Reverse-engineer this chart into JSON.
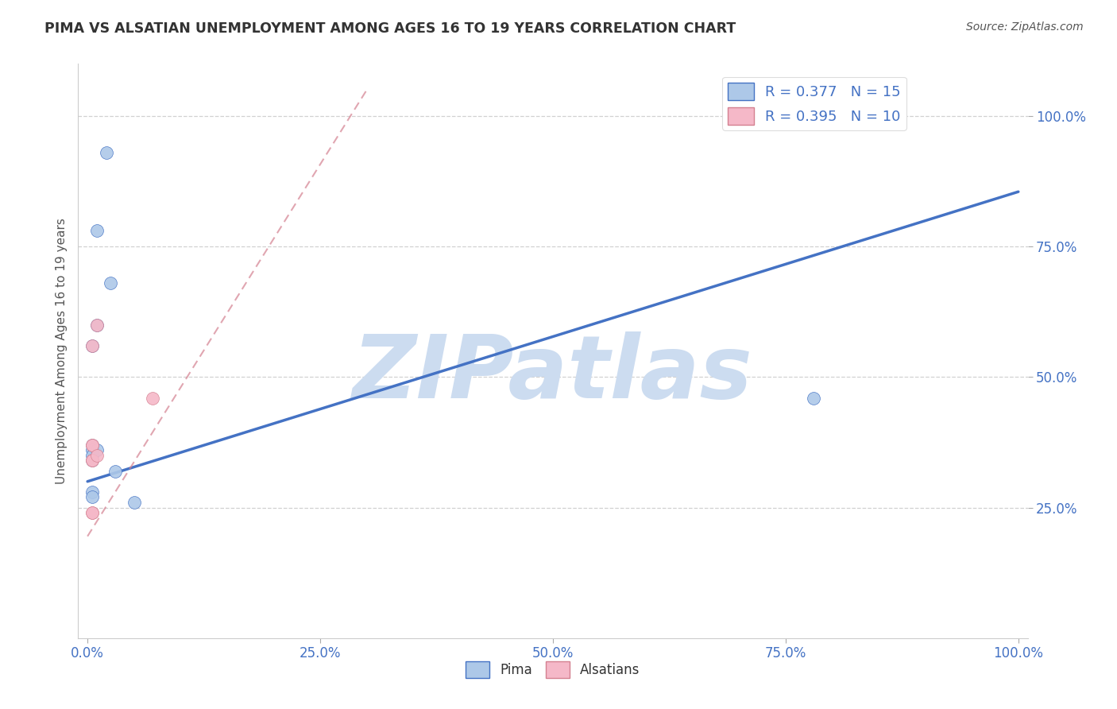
{
  "title": "PIMA VS ALSATIAN UNEMPLOYMENT AMONG AGES 16 TO 19 YEARS CORRELATION CHART",
  "source_text": "Source: ZipAtlas.com",
  "ylabel": "Unemployment Among Ages 16 to 19 years",
  "xlabel": "",
  "watermark": "ZIPatlas",
  "pima_R": 0.377,
  "pima_N": 15,
  "alsatian_R": 0.395,
  "alsatian_N": 10,
  "pima_color": "#adc8e8",
  "alsatian_color": "#f5b8c8",
  "pima_line_color": "#4472c4",
  "alsatian_line_color": "#d48090",
  "pima_scatter_x": [
    0.02,
    0.01,
    0.01,
    0.005,
    0.005,
    0.005,
    0.005,
    0.005,
    0.005,
    0.005,
    0.025,
    0.01,
    0.03,
    0.78,
    0.05
  ],
  "pima_scatter_y": [
    0.93,
    0.78,
    0.6,
    0.56,
    0.37,
    0.36,
    0.35,
    0.34,
    0.28,
    0.27,
    0.68,
    0.36,
    0.32,
    0.46,
    0.26
  ],
  "alsatian_scatter_x": [
    0.005,
    0.005,
    0.005,
    0.01,
    0.07,
    0.005,
    0.005,
    0.01,
    0.005,
    0.005
  ],
  "alsatian_scatter_y": [
    0.56,
    0.37,
    0.37,
    0.6,
    0.46,
    0.34,
    0.34,
    0.35,
    0.24,
    0.24
  ],
  "pima_line_x0": 0.0,
  "pima_line_y0": 0.3,
  "pima_line_x1": 1.0,
  "pima_line_y1": 0.855,
  "alsatian_line_x0": 0.0,
  "alsatian_line_y0": 0.195,
  "alsatian_line_x1": 0.3,
  "alsatian_line_y1": 1.05,
  "xlim": [
    -0.01,
    1.01
  ],
  "ylim": [
    0.0,
    1.1
  ],
  "xticks": [
    0.0,
    0.25,
    0.5,
    0.75,
    1.0
  ],
  "yticks": [
    0.25,
    0.5,
    0.75,
    1.0
  ],
  "xticklabels": [
    "0.0%",
    "25.0%",
    "50.0%",
    "75.0%",
    "100.0%"
  ],
  "yticklabels": [
    "25.0%",
    "50.0%",
    "75.0%",
    "100.0%"
  ],
  "grid_color": "#cccccc",
  "bg_color": "#ffffff",
  "tick_color": "#4472c4",
  "title_color": "#333333",
  "watermark_color": "#ccdcf0",
  "marker_size": 130
}
